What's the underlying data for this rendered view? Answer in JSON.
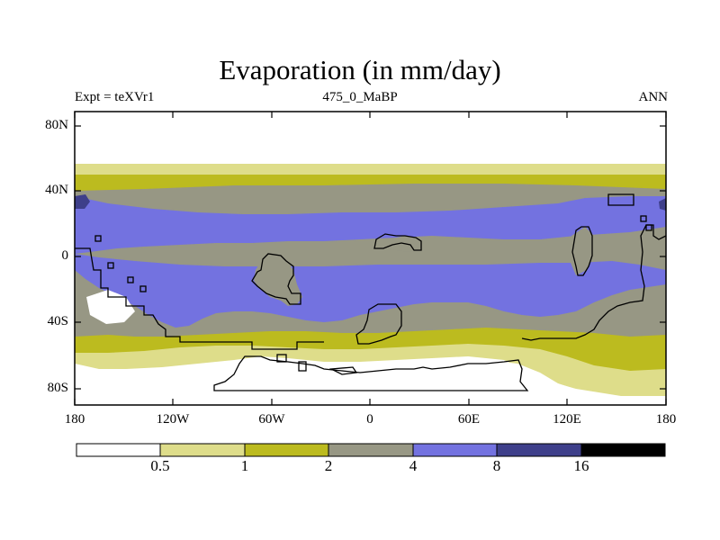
{
  "title": "Evaporation (in mm/day)",
  "experiment": "Expt = teXVr1",
  "period": "475_0_MaBP",
  "season": "ANN",
  "lat_ticks": [
    "80N",
    "40N",
    "0",
    "40S",
    "80S"
  ],
  "lon_ticks": [
    "180",
    "120W",
    "60W",
    "0",
    "60E",
    "120E",
    "180"
  ],
  "colorbar": {
    "levels": [
      "0.5",
      "1",
      "2",
      "4",
      "8",
      "16"
    ],
    "colors": [
      "#ffffff",
      "#dedd8a",
      "#bcbb1f",
      "#979784",
      "#7372e0",
      "#3e3f8a",
      "#000000"
    ]
  }
}
